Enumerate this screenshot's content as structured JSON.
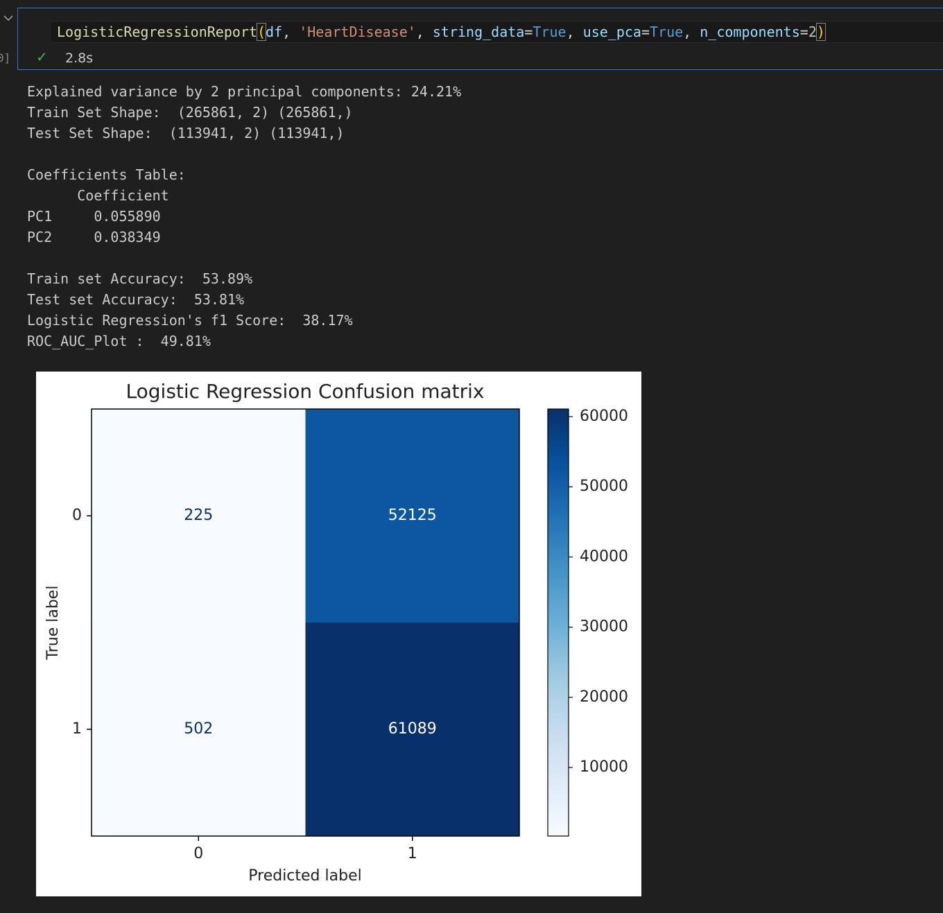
{
  "cell": {
    "execution_count": "0]",
    "code": [
      {
        "text": "LogisticRegressionReport",
        "color": "#dcdcaa"
      },
      {
        "text": "(",
        "color": "#ffd700"
      },
      {
        "text": "df",
        "color": "#9cdcfe"
      },
      {
        "text": ", ",
        "color": "#d4d4d4"
      },
      {
        "text": "'HeartDisease'",
        "color": "#ce9178"
      },
      {
        "text": ", ",
        "color": "#d4d4d4"
      },
      {
        "text": "string_data",
        "color": "#9cdcfe"
      },
      {
        "text": "=",
        "color": "#d4d4d4"
      },
      {
        "text": "True",
        "color": "#569cd6"
      },
      {
        "text": ", ",
        "color": "#d4d4d4"
      },
      {
        "text": "use_pca",
        "color": "#9cdcfe"
      },
      {
        "text": "=",
        "color": "#d4d4d4"
      },
      {
        "text": "True",
        "color": "#569cd6"
      },
      {
        "text": ", ",
        "color": "#d4d4d4"
      },
      {
        "text": "n_components",
        "color": "#9cdcfe"
      },
      {
        "text": "=",
        "color": "#d4d4d4"
      },
      {
        "text": "2",
        "color": "#b5cea8"
      },
      {
        "text": ")",
        "color": "#ffd700"
      }
    ],
    "status": "2.8s"
  },
  "output": {
    "blocks": [
      [
        "Explained variance by 2 principal components: 24.21%",
        "Train Set Shape:  (265861, 2) (265861,)",
        "Test Set Shape:  (113941, 2) (113941,)"
      ],
      [
        "Coefficients Table:",
        "      Coefficient",
        "PC1     0.055890",
        "PC2     0.038349"
      ],
      [
        "Train set Accuracy:  53.89%",
        "Test set Accuracy:  53.81%",
        "Logistic Regression's f1 Score:  38.17%",
        "ROC_AUC_Plot :  49.81%"
      ]
    ]
  },
  "chart_data": {
    "type": "heatmap",
    "title": "Logistic Regression Confusion matrix",
    "x_label": "Predicted label",
    "y_label": "True label",
    "x_categories": [
      "0",
      "1"
    ],
    "y_categories": [
      "0",
      "1"
    ],
    "values": [
      [
        225,
        52125
      ],
      [
        502,
        61089
      ]
    ],
    "colormap": "Blues",
    "colorbar_lim": [
      225,
      61089
    ],
    "colorbar_ticks": [
      10000,
      20000,
      30000,
      40000,
      50000,
      60000
    ]
  }
}
